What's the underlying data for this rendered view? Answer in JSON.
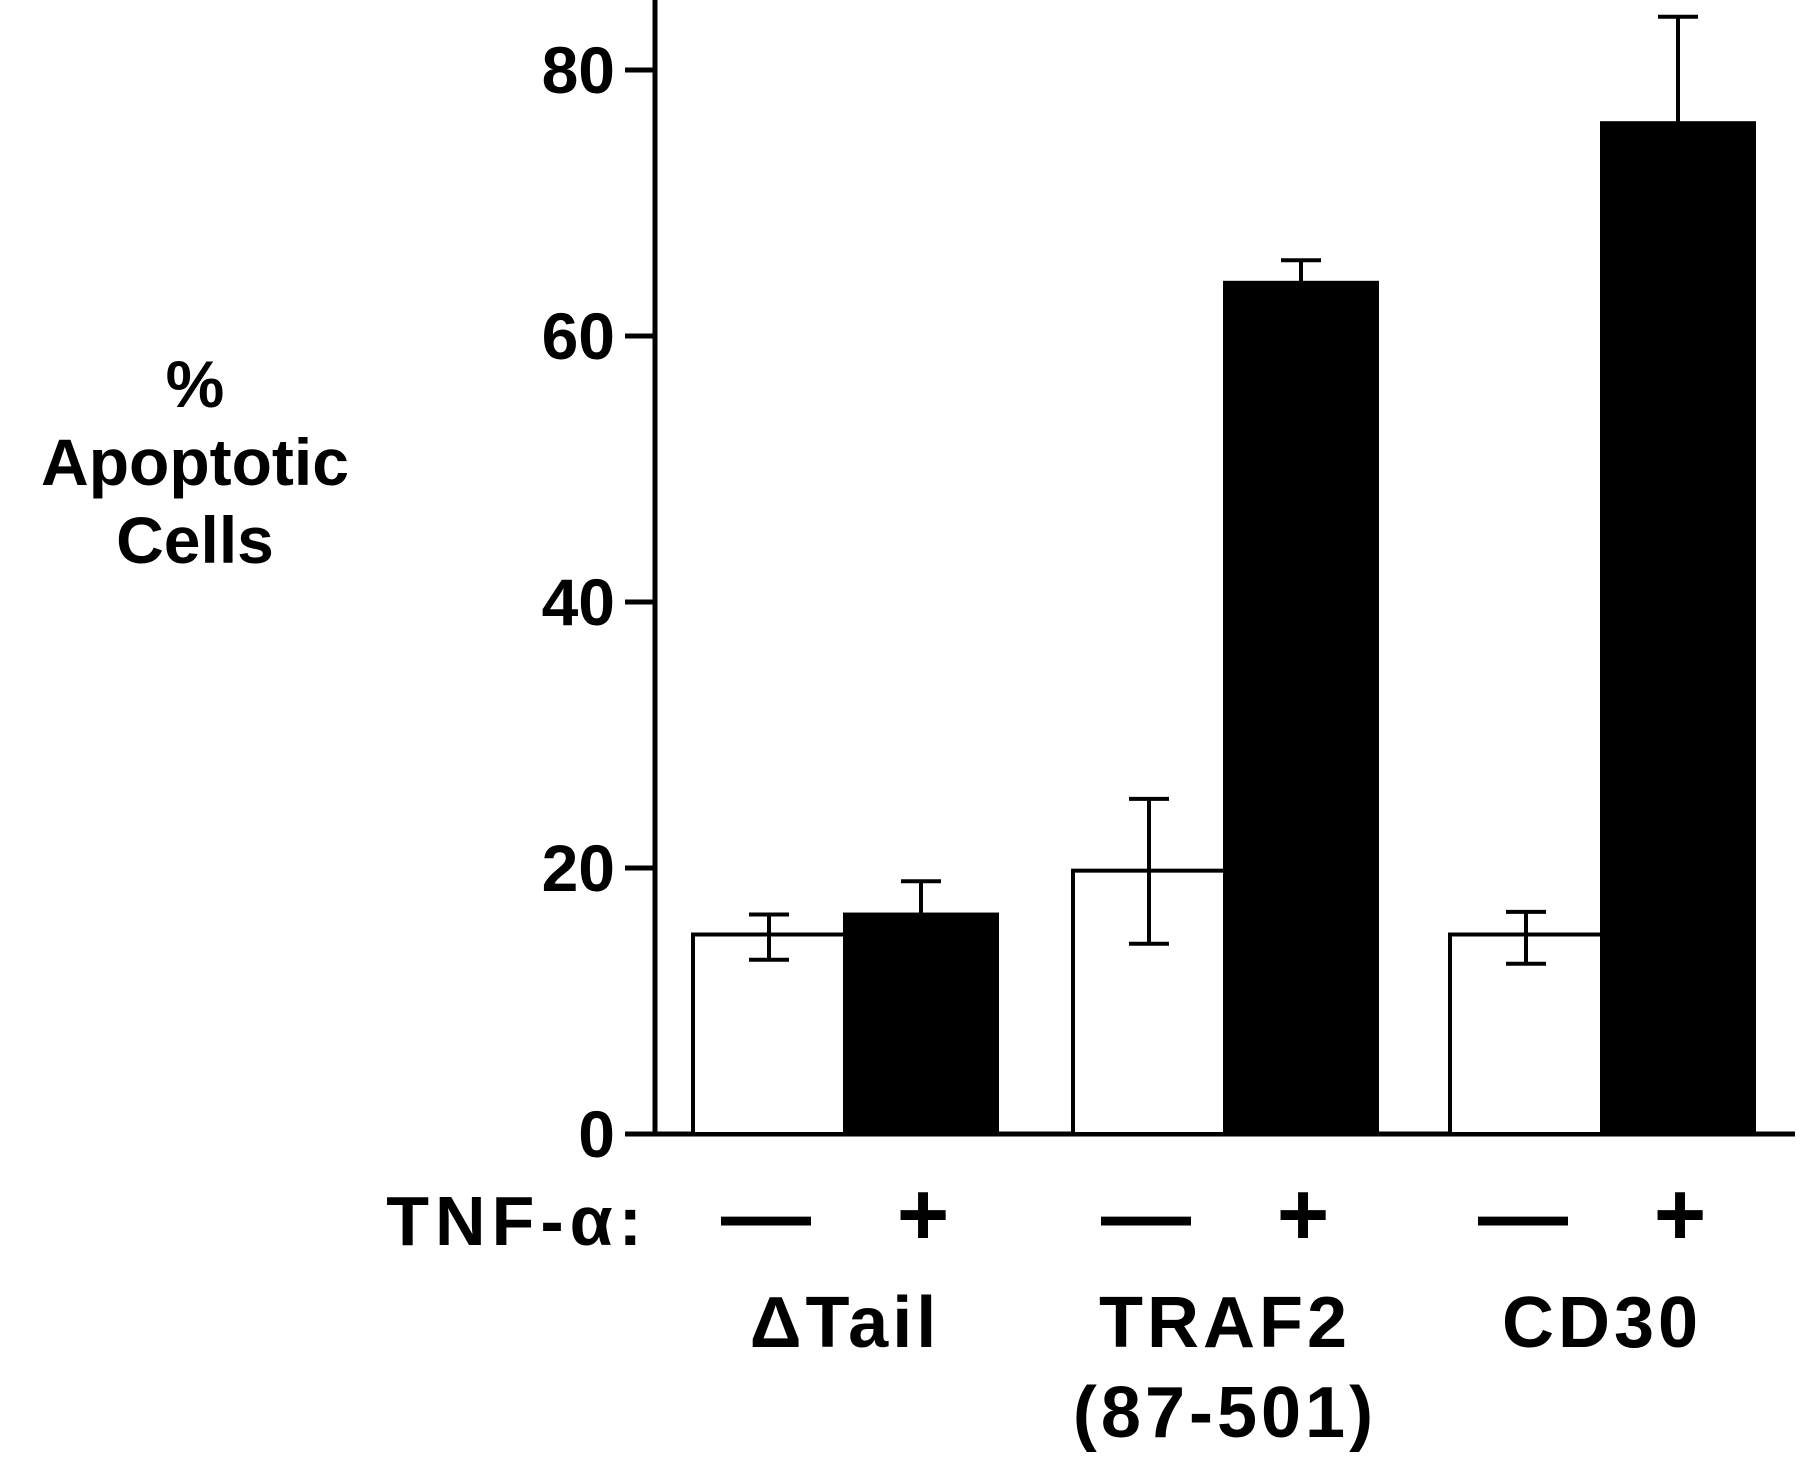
{
  "chart_data": {
    "type": "bar",
    "title": "",
    "ylabel_lines": [
      "%",
      "Apoptotic",
      "Cells"
    ],
    "y_ticks": [
      "0",
      "20",
      "40",
      "60",
      "80"
    ],
    "ylim": [
      0,
      84
    ],
    "grid": false,
    "treatment_label": "TNF-α:",
    "treatment_symbols": [
      "—",
      "+"
    ],
    "groups": [
      {
        "label_lines": [
          "ΔTail"
        ],
        "bars": [
          {
            "treatment": "—",
            "value": 15,
            "err_low": 13.1,
            "err_high": 16.5,
            "fill": "#ffffff"
          },
          {
            "treatment": "+",
            "value": 16.5,
            "err_low": 16.5,
            "err_high": 19,
            "fill": "#000000"
          }
        ]
      },
      {
        "label_lines": [
          "TRAF2",
          "(87-501)"
        ],
        "bars": [
          {
            "treatment": "—",
            "value": 19.8,
            "err_low": 14.3,
            "err_high": 25.2,
            "fill": "#ffffff"
          },
          {
            "treatment": "+",
            "value": 64,
            "err_low": 64,
            "err_high": 65.7,
            "fill": "#000000"
          }
        ]
      },
      {
        "label_lines": [
          "CD30"
        ],
        "bars": [
          {
            "treatment": "—",
            "value": 15,
            "err_low": 12.8,
            "err_high": 16.7,
            "fill": "#ffffff"
          },
          {
            "treatment": "+",
            "value": 76,
            "err_low": 76,
            "err_high": 84,
            "fill": "#000000"
          }
        ]
      }
    ]
  }
}
